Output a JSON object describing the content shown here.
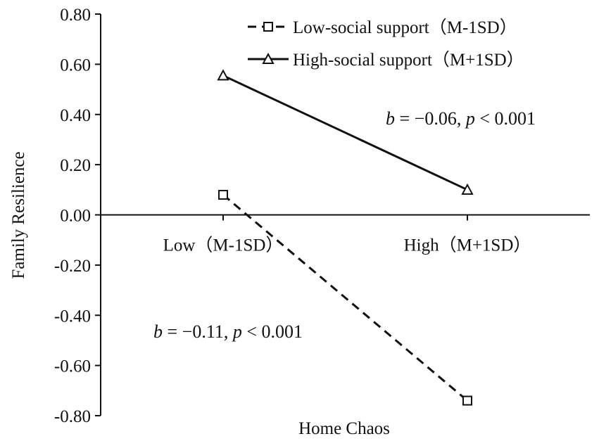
{
  "chart_data": {
    "type": "line",
    "xlabel": "Home Chaos",
    "ylabel": "Family Resilience",
    "categories": [
      "Low（M-1SD）",
      "High（M+1SD）"
    ],
    "ylim": [
      -0.8,
      0.8
    ],
    "yticks": [
      "0.80",
      "0.60",
      "0.40",
      "0.20",
      "0.00",
      "-0.20",
      "-0.40",
      "-0.60",
      "-0.80"
    ],
    "legend_position": "top-right",
    "series": [
      {
        "name": "Low-social support（M-1SD）",
        "values": [
          0.08,
          -0.74
        ],
        "marker": "square",
        "dash": "dashed",
        "color": "#111111"
      },
      {
        "name": "High-social support（M+1SD）",
        "values": [
          0.555,
          0.1
        ],
        "marker": "triangle",
        "dash": "solid",
        "color": "#111111"
      }
    ],
    "annotations": [
      {
        "b_label": "b",
        "b_value": " = −0.06, ",
        "p_label": "p",
        "p_value": " < 0.001"
      },
      {
        "b_label": "b",
        "b_value": " = −0.11, ",
        "p_label": "p",
        "p_value": " < 0.001"
      }
    ]
  }
}
